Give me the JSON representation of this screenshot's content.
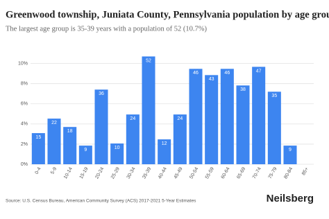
{
  "chart_data": {
    "type": "bar",
    "title": "Greenwood township, Juniata County, Pennsylvania population by age group",
    "subtitle": "The largest age group is 35-39 years with a population of 52 (10.7%)",
    "categories": [
      "0-4",
      "5-9",
      "10-14",
      "15-19",
      "20-24",
      "25-29",
      "30-34",
      "35-39",
      "40-44",
      "45-49",
      "50-54",
      "55-59",
      "60-64",
      "65-69",
      "70-74",
      "75-79",
      "80-84",
      "85+"
    ],
    "values": [
      3.09,
      4.53,
      3.7,
      1.85,
      7.41,
      2.06,
      4.94,
      10.7,
      2.47,
      4.94,
      9.47,
      8.85,
      9.47,
      7.82,
      9.67,
      7.2,
      1.85,
      0
    ],
    "population": [
      15,
      22,
      18,
      9,
      36,
      10,
      24,
      52,
      12,
      24,
      46,
      43,
      46,
      38,
      47,
      35,
      9,
      0
    ],
    "color": "#3d85f0",
    "ylim": [
      0,
      10.8
    ],
    "yticks": [
      {
        "value": 0,
        "label": "0%"
      },
      {
        "value": 2,
        "label": "2%"
      },
      {
        "value": 4,
        "label": "4%"
      },
      {
        "value": 6,
        "label": "6%"
      },
      {
        "value": 8,
        "label": "8%"
      },
      {
        "value": 10,
        "label": "10%"
      }
    ],
    "grid": true,
    "source": "Source: U.S. Census Bureau, American Community Survey (ACS) 2017-2021 5-Year Estimates",
    "brand": "Neilsberg"
  }
}
